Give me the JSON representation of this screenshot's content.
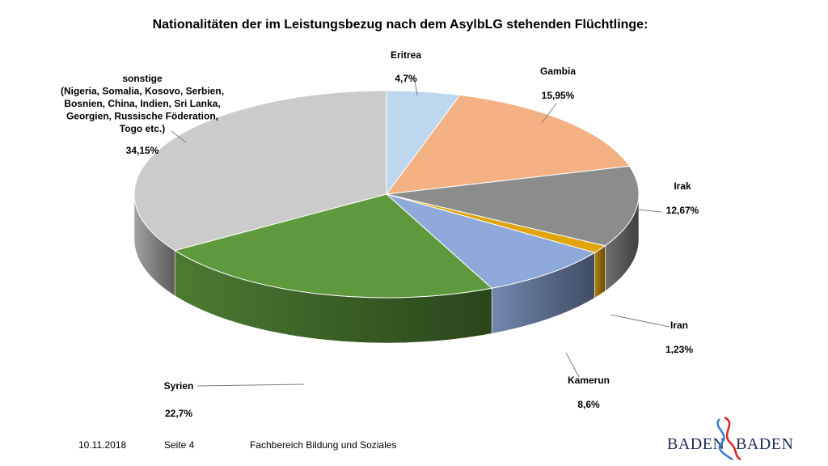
{
  "title": "Nationalitäten der im Leistungsbezug nach dem AsylbLG stehenden Flüchtlinge:",
  "footer": {
    "date": "10.11.2018",
    "page": "Seite 4",
    "department": "Fachbereich Bildung und Soziales"
  },
  "logo": {
    "left": "BADEN",
    "right": "BADEN",
    "colors": {
      "text": "#1c2a55",
      "wave_blue": "#3a7bd5",
      "wave_red": "#d9261c"
    }
  },
  "chart_data": {
    "type": "pie",
    "style": "3d",
    "title": "Nationalitäten der im Leistungsbezug nach dem AsylbLG stehenden Flüchtlinge:",
    "series": [
      {
        "name": "Eritrea",
        "value": 4.7,
        "label": "4,7%",
        "color": "#bdd7ee"
      },
      {
        "name": "Gambia",
        "value": 15.95,
        "label": "15,95%",
        "color": "#f4b183"
      },
      {
        "name": "Irak",
        "value": 12.67,
        "label": "12,67%",
        "color": "#8c8c8c"
      },
      {
        "name": "Iran",
        "value": 1.23,
        "label": "1,23%",
        "color": "#e0a50d"
      },
      {
        "name": "Kamerun",
        "value": 8.6,
        "label": "8,6%",
        "color": "#8eaadb"
      },
      {
        "name": "Syrien",
        "value": 22.7,
        "label": "22,7%",
        "color": "#5e9a3d"
      },
      {
        "name": "sonstige",
        "name_lines": [
          "sonstige",
          "(Nigeria, Somalia, Kosovo, Serbien,",
          "Bosnien, China, Indien, Sri Lanka,",
          "Georgien, Russische Föderation,",
          "Togo etc.)"
        ],
        "value": 34.15,
        "label": "34,15%",
        "color": "#cccbcb"
      }
    ]
  }
}
